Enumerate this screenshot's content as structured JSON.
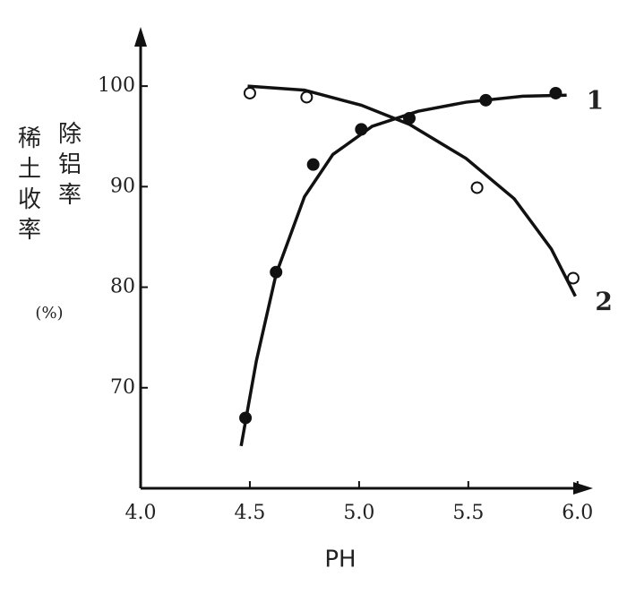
{
  "chart_data": {
    "type": "scatter-fit",
    "xlabel": "PH",
    "ylabel_left": "稀土收率",
    "ylabel_right": "除铝率",
    "ylabel_unit": "(%)",
    "xlim": [
      4.0,
      6.05
    ],
    "ylim": [
      60,
      105
    ],
    "xticks": [
      {
        "value": 4.0,
        "label": "4.0"
      },
      4.5,
      {
        "value": 5.0,
        "label": "5.0"
      },
      5.5,
      {
        "value": 6.0,
        "label": "6.0"
      }
    ],
    "yticks": [
      70,
      80,
      90,
      100
    ],
    "series": [
      {
        "name": "1",
        "color": "#111",
        "marker": "filled",
        "x": [
          4.48,
          4.62,
          4.79,
          5.01,
          5.23,
          5.58,
          5.9
        ],
        "values": [
          67,
          81.5,
          92.2,
          95.7,
          96.8,
          98.6,
          99.3
        ],
        "fit": {
          "x": [
            4.46,
            4.53,
            4.62,
            4.75,
            4.88,
            5.06,
            5.27,
            5.49,
            5.75,
            5.95
          ],
          "values": [
            64.2,
            72.7,
            81.3,
            89.0,
            93.2,
            96.0,
            97.5,
            98.4,
            99.0,
            99.1
          ]
        }
      },
      {
        "name": "2",
        "color": "#111",
        "marker": "open",
        "x": [
          4.5,
          4.76,
          5.54,
          5.98
        ],
        "values": [
          99.3,
          98.9,
          89.9,
          80.9
        ],
        "fit": {
          "x": [
            4.49,
            4.75,
            5.01,
            5.23,
            5.49,
            5.71,
            5.88,
            5.99
          ],
          "values": [
            100,
            99.6,
            98.1,
            96.2,
            92.8,
            88.8,
            83.8,
            79.1
          ]
        }
      }
    ]
  }
}
